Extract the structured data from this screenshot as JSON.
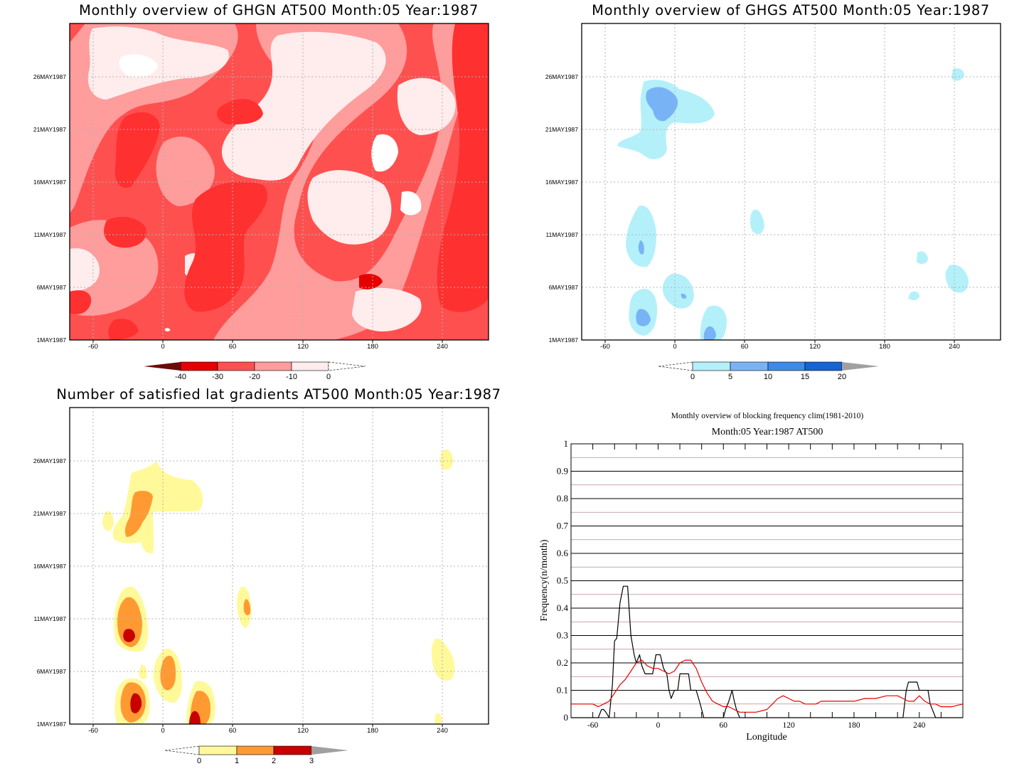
{
  "panels": [
    {
      "title": "Monthly overview of GHGN AT500 Month:05 Year:1987",
      "x_ticks": [
        "-60",
        "0",
        "60",
        "120",
        "180",
        "240"
      ],
      "y_ticks": [
        "1MAY1987",
        "6MAY1987",
        "11MAY1987",
        "16MAY1987",
        "21MAY1987",
        "26MAY1987"
      ],
      "colorbar": {
        "labels": [
          "-40",
          "-30",
          "-20",
          "-10",
          "0"
        ],
        "colors": [
          "#6b0a0a",
          "#e60000",
          "#ff5050",
          "#ff9c9c",
          "#ffecec"
        ]
      }
    },
    {
      "title": "Monthly overview of GHGS AT500 Month:05 Year:1987",
      "x_ticks": [
        "-60",
        "0",
        "60",
        "120",
        "180",
        "240"
      ],
      "y_ticks": [
        "1MAY1987",
        "6MAY1987",
        "11MAY1987",
        "16MAY1987",
        "21MAY1987",
        "26MAY1987"
      ],
      "colorbar": {
        "labels": [
          "0",
          "5",
          "10",
          "15",
          "20"
        ],
        "colors": [
          "#b4f0fa",
          "#78b4f5",
          "#3c8ce6",
          "#1464d2",
          "#a0a0a0"
        ]
      }
    },
    {
      "title": "Number of satisfied lat gradients AT500 Month:05 Year:1987",
      "x_ticks": [
        "-60",
        "0",
        "60",
        "120",
        "180",
        "240"
      ],
      "y_ticks": [
        "1MAY1987",
        "6MAY1987",
        "11MAY1987",
        "16MAY1987",
        "21MAY1987",
        "26MAY1987"
      ],
      "colorbar": {
        "labels": [
          "0",
          "1",
          "2",
          "3"
        ],
        "colors": [
          "#fff99a",
          "#ff9a32",
          "#c80000",
          "#a0a0a0"
        ]
      }
    }
  ],
  "chart_data": [
    {
      "type": "heatmap",
      "title": "Monthly overview of GHGN AT500 Month:05 Year:1987",
      "xlim": [
        -80,
        280
      ],
      "x_ticks": [
        -60,
        0,
        60,
        120,
        180,
        240
      ],
      "colorbar_levels": [
        -40,
        -30,
        -20,
        -10,
        0
      ]
    },
    {
      "type": "heatmap",
      "title": "Monthly overview of GHGS AT500 Month:05 Year:1987",
      "xlim": [
        -80,
        280
      ],
      "x_ticks": [
        -60,
        0,
        60,
        120,
        180,
        240
      ],
      "colorbar_levels": [
        0,
        5,
        10,
        15,
        20
      ]
    },
    {
      "type": "heatmap",
      "title": "Number of satisfied lat gradients AT500 Month:05 Year:1987",
      "xlim": [
        -80,
        280
      ],
      "x_ticks": [
        -60,
        0,
        60,
        120,
        180,
        240
      ],
      "colorbar_levels": [
        0,
        1,
        2,
        3
      ]
    },
    {
      "type": "line",
      "title": "Monthly overview of blocking frequency clim(1981-2010)",
      "subtitle": "Month:05 Year:1987  AT500",
      "xlabel": "Longitude",
      "ylabel": "Frequency(n/month)",
      "xlim": [
        -80,
        280
      ],
      "ylim": [
        0,
        1
      ],
      "x_ticks": [
        -60,
        0,
        60,
        120,
        180,
        240
      ],
      "y_ticks": [
        "0",
        "0.1",
        "0.2",
        "0.3",
        "0.4",
        "0.5",
        "0.6",
        "0.7",
        "0.8",
        "0.9",
        "1"
      ],
      "series": [
        {
          "color": "#000000",
          "x": [
            -80,
            -55,
            -52,
            -50,
            -48,
            -45,
            -42,
            -40,
            -38,
            -35,
            -32,
            -30,
            -28,
            -25,
            -22,
            -20,
            -17,
            -15,
            -12,
            -10,
            -8,
            -5,
            -2,
            0,
            2,
            5,
            8,
            10,
            12,
            15,
            18,
            20,
            22,
            25,
            28,
            30,
            32,
            35,
            38,
            40,
            42,
            45,
            50,
            55,
            60,
            62,
            65,
            68,
            70,
            72,
            75,
            80,
            100,
            200,
            225,
            228,
            230,
            232,
            235,
            238,
            240,
            242,
            245,
            248,
            250,
            255,
            260,
            280
          ],
          "y": [
            0,
            0,
            0.03,
            0.03,
            0.02,
            0,
            0.12,
            0.28,
            0.29,
            0.42,
            0.48,
            0.48,
            0.48,
            0.3,
            0.23,
            0.2,
            0.23,
            0.19,
            0.16,
            0.16,
            0.16,
            0.16,
            0.23,
            0.23,
            0.23,
            0.18,
            0.16,
            0.1,
            0.07,
            0.1,
            0.1,
            0.16,
            0.16,
            0.16,
            0.16,
            0.1,
            0.1,
            0.1,
            0.06,
            0.03,
            0,
            0,
            0,
            0,
            0,
            0.03,
            0.06,
            0.1,
            0.06,
            0.03,
            0,
            0,
            0,
            0,
            0,
            0.1,
            0.13,
            0.13,
            0.13,
            0.13,
            0.1,
            0.1,
            0.1,
            0.1,
            0.05,
            0,
            0,
            0
          ]
        },
        {
          "color": "#e60000",
          "x": [
            -80,
            -70,
            -60,
            -55,
            -50,
            -45,
            -40,
            -35,
            -30,
            -25,
            -20,
            -15,
            -10,
            -5,
            0,
            5,
            10,
            15,
            20,
            25,
            30,
            35,
            40,
            45,
            50,
            55,
            60,
            65,
            70,
            75,
            80,
            90,
            100,
            105,
            110,
            115,
            120,
            125,
            130,
            135,
            140,
            145,
            150,
            160,
            170,
            180,
            190,
            200,
            210,
            220,
            230,
            235,
            240,
            245,
            250,
            255,
            260,
            270,
            280
          ],
          "y": [
            0.05,
            0.05,
            0.05,
            0.04,
            0.05,
            0.06,
            0.09,
            0.12,
            0.14,
            0.17,
            0.2,
            0.21,
            0.19,
            0.18,
            0.18,
            0.17,
            0.16,
            0.17,
            0.2,
            0.21,
            0.21,
            0.18,
            0.13,
            0.09,
            0.06,
            0.05,
            0.04,
            0.04,
            0.03,
            0.02,
            0.02,
            0.02,
            0.03,
            0.05,
            0.07,
            0.08,
            0.07,
            0.06,
            0.06,
            0.05,
            0.05,
            0.05,
            0.06,
            0.06,
            0.06,
            0.06,
            0.07,
            0.07,
            0.08,
            0.08,
            0.06,
            0.06,
            0.08,
            0.06,
            0.05,
            0.05,
            0.04,
            0.04,
            0.05
          ]
        }
      ]
    }
  ]
}
